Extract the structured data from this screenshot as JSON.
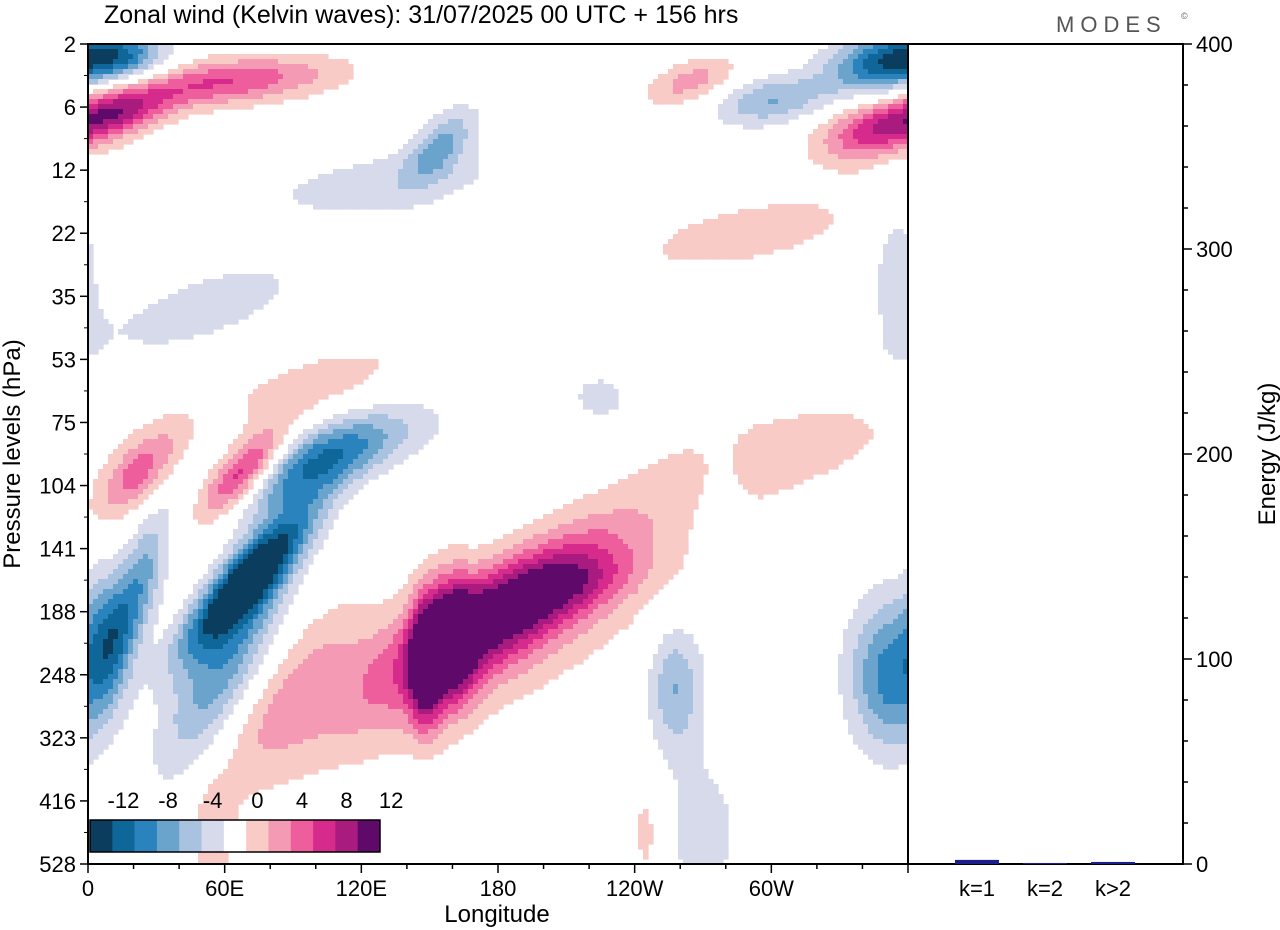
{
  "header": {
    "title": "Zonal wind (Kelvin waves):  31/07/2025  00 UTC  + 156 hrs",
    "logo": "MODES",
    "logo_mark": "©"
  },
  "colors": {
    "neg": [
      "#0b3d5e",
      "#0e6699",
      "#2a83bd",
      "#6aa3cc",
      "#a9c2df",
      "#d6daea"
    ],
    "neutral": "#ffffff",
    "pos": [
      "#f8cbc6",
      "#f59ab4",
      "#ee5e9d",
      "#d62b8c",
      "#a91b7e",
      "#5f0a6b"
    ],
    "bar": "#1b1e8c"
  },
  "chart_data": [
    {
      "type": "heatmap",
      "title": "Zonal wind (Kelvin waves)",
      "xlabel": "Longitude",
      "ylabel": "Pressure levels (hPa)",
      "x_ticks": [
        "0",
        "60E",
        "120E",
        "180",
        "120W",
        "60W"
      ],
      "x_tick_degrees": [
        0,
        60,
        120,
        180,
        240,
        300
      ],
      "xlim": [
        0,
        360
      ],
      "y_ticks": [
        "2",
        "6",
        "12",
        "22",
        "35",
        "53",
        "75",
        "104",
        "141",
        "188",
        "248",
        "323",
        "416",
        "528"
      ],
      "colorbar": {
        "labels": [
          "-12",
          "-8",
          "-4",
          "0",
          "4",
          "8",
          "12"
        ],
        "levels": [
          -14,
          -12,
          -10,
          -8,
          -6,
          -4,
          -2,
          2,
          4,
          6,
          8,
          10,
          12,
          14
        ]
      },
      "features": [
        {
          "lon": 70,
          "level": 8.5,
          "lon_width": 14,
          "level_width": 1.1,
          "tilt_deg_per_level": -22,
          "value": -14
        },
        {
          "lon": 60,
          "level": 9.8,
          "lon_width": 18,
          "level_width": 1.8,
          "tilt_deg_per_level": -12,
          "value": -8
        },
        {
          "lon": 95,
          "level": 6.8,
          "lon_width": 22,
          "level_width": 0.7,
          "tilt_deg_per_level": -26,
          "value": -7
        },
        {
          "lon": 120,
          "level": 6.3,
          "lon_width": 30,
          "level_width": 0.6,
          "tilt_deg_per_level": -28,
          "value": -5
        },
        {
          "lon": 20,
          "level": 8.8,
          "lon_width": 10,
          "level_width": 1.3,
          "tilt_deg_per_level": -8,
          "value": -8
        },
        {
          "lon": 8,
          "level": 9.3,
          "lon_width": 10,
          "level_width": 1.0,
          "tilt_deg_per_level": 0,
          "value": -5
        },
        {
          "lon": 50,
          "level": 4.2,
          "lon_width": 40,
          "level_width": 0.9,
          "tilt_deg_per_level": -40,
          "value": -3
        },
        {
          "lon": 130,
          "level": 2.2,
          "lon_width": 55,
          "level_width": 0.6,
          "tilt_deg_per_level": -45,
          "value": -3
        },
        {
          "lon": 155,
          "level": 1.6,
          "lon_width": 12,
          "level_width": 0.6,
          "tilt_deg_per_level": -15,
          "value": -6
        },
        {
          "lon": 225,
          "level": 5.6,
          "lon_width": 14,
          "level_width": 0.4,
          "tilt_deg_per_level": 0,
          "value": -3
        },
        {
          "lon": 278,
          "level": 7.6,
          "lon_width": 10,
          "level_width": 1.2,
          "tilt_deg_per_level": 0,
          "value": -3
        },
        {
          "lon": 352,
          "level": 10,
          "lon_width": 18,
          "level_width": 1.2,
          "tilt_deg_per_level": 0,
          "value": -9
        },
        {
          "lon": 258,
          "level": 10.2,
          "lon_width": 12,
          "level_width": 1.0,
          "tilt_deg_per_level": 0,
          "value": -6
        },
        {
          "lon": 270,
          "level": 12.5,
          "lon_width": 18,
          "level_width": 1.3,
          "tilt_deg_per_level": 0,
          "value": -3
        },
        {
          "lon": 355,
          "level": 3.5,
          "lon_width": 12,
          "level_width": 1.6,
          "tilt_deg_per_level": 0,
          "value": -3
        },
        {
          "lon": 350,
          "level": 0.3,
          "lon_width": 24,
          "level_width": 0.5,
          "tilt_deg_per_level": -12,
          "value": -11
        },
        {
          "lon": 300,
          "level": 0.9,
          "lon_width": 24,
          "level_width": 0.4,
          "tilt_deg_per_level": -15,
          "value": -6
        },
        {
          "lon": 15,
          "level": 0.2,
          "lon_width": 20,
          "level_width": 0.4,
          "tilt_deg_per_level": 0,
          "value": -8
        },
        {
          "lon": 185,
          "level": 8.9,
          "lon_width": 28,
          "level_width": 1.1,
          "tilt_deg_per_level": -30,
          "value": 11
        },
        {
          "lon": 165,
          "level": 9.6,
          "lon_width": 55,
          "level_width": 1.8,
          "tilt_deg_per_level": -38,
          "value": 6
        },
        {
          "lon": 148,
          "level": 9.8,
          "lon_width": 7,
          "level_width": 1.0,
          "tilt_deg_per_level": 0,
          "value": 11
        },
        {
          "lon": 160,
          "level": 9.4,
          "lon_width": 10,
          "level_width": 1.0,
          "tilt_deg_per_level": 0,
          "value": 10
        },
        {
          "lon": 90,
          "level": 10.2,
          "lon_width": 20,
          "level_width": 1.5,
          "tilt_deg_per_level": -15,
          "value": 3
        },
        {
          "lon": 68,
          "level": 6.8,
          "lon_width": 12,
          "level_width": 0.7,
          "tilt_deg_per_level": -20,
          "value": 10
        },
        {
          "lon": 22,
          "level": 6.8,
          "lon_width": 14,
          "level_width": 0.7,
          "tilt_deg_per_level": -18,
          "value": 7
        },
        {
          "lon": 100,
          "level": 5.4,
          "lon_width": 35,
          "level_width": 0.7,
          "tilt_deg_per_level": -40,
          "value": 3
        },
        {
          "lon": 300,
          "level": 6.5,
          "lon_width": 55,
          "level_width": 1.0,
          "tilt_deg_per_level": -45,
          "value": 3
        },
        {
          "lon": 290,
          "level": 3.0,
          "lon_width": 50,
          "level_width": 0.7,
          "tilt_deg_per_level": -45,
          "value": 3
        },
        {
          "lon": 345,
          "level": 1.4,
          "lon_width": 24,
          "level_width": 0.5,
          "tilt_deg_per_level": -15,
          "value": 8
        },
        {
          "lon": 60,
          "level": 0.6,
          "lon_width": 45,
          "level_width": 0.4,
          "tilt_deg_per_level": -45,
          "value": 8
        },
        {
          "lon": 12,
          "level": 1.1,
          "lon_width": 22,
          "level_width": 0.4,
          "tilt_deg_per_level": -25,
          "value": 9
        },
        {
          "lon": 265,
          "level": 0.6,
          "lon_width": 18,
          "level_width": 0.4,
          "tilt_deg_per_level": -25,
          "value": 5
        },
        {
          "lon": 245,
          "level": 12.5,
          "lon_width": 6,
          "level_width": 0.8,
          "tilt_deg_per_level": 0,
          "value": 3
        },
        {
          "lon": 55,
          "level": 12.6,
          "lon_width": 10,
          "level_width": 0.9,
          "tilt_deg_per_level": 0,
          "value": 3
        },
        {
          "lon": 215,
          "level": 8.6,
          "lon_width": 25,
          "level_width": 0.5,
          "tilt_deg_per_level": -30,
          "value": 3
        }
      ]
    },
    {
      "type": "bar",
      "ylabel": "Energy (J/kg)",
      "categories": [
        "k=1",
        "k=2",
        "k>2"
      ],
      "values": [
        2,
        0.5,
        1
      ],
      "ylim": [
        0,
        400
      ],
      "y_ticks": [
        "0",
        "100",
        "200",
        "300",
        "400"
      ],
      "y_tick_values": [
        0,
        100,
        200,
        300,
        400
      ]
    }
  ]
}
